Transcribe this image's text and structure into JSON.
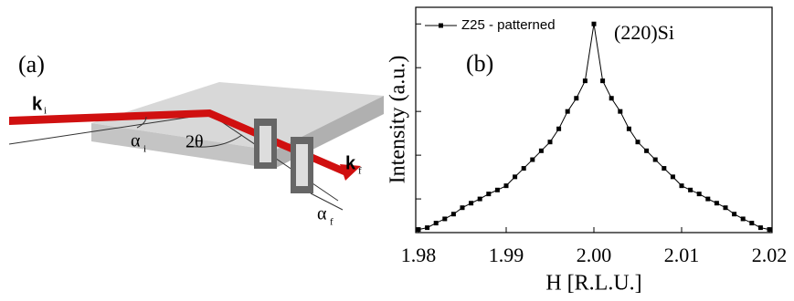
{
  "panel_a": {
    "label": "(a)",
    "k_in": "k",
    "k_in_sub": "i",
    "alpha_in": "α",
    "alpha_in_sub": "i",
    "two_theta": "2θ",
    "k_out": "k",
    "k_out_sub": "f",
    "alpha_out": "α",
    "alpha_out_sub": "f"
  },
  "chart_data": {
    "type": "line",
    "panel_label": "(b)",
    "annotation": "(220)Si",
    "x_label": "H [R.L.U.]",
    "y_label": "Intensity (a.u.)",
    "x": [
      1.98,
      1.981,
      1.982,
      1.983,
      1.984,
      1.985,
      1.986,
      1.987,
      1.988,
      1.989,
      1.99,
      1.991,
      1.992,
      1.993,
      1.994,
      1.995,
      1.996,
      1.997,
      1.998,
      1.999,
      2.0,
      2.001,
      2.002,
      2.003,
      2.004,
      2.005,
      2.006,
      2.007,
      2.008,
      2.009,
      2.01,
      2.011,
      2.012,
      2.013,
      2.014,
      2.015,
      2.016,
      2.017,
      2.018,
      2.019,
      2.02
    ],
    "series": [
      {
        "name": "Z25 - patterned",
        "color": "#000000",
        "values": [
          2.0,
          2.2,
          2.8,
          3.5,
          4.5,
          6.3,
          8,
          10,
          13,
          16,
          20,
          32,
          50,
          79,
          126,
          200,
          400,
          1000,
          2000,
          5000,
          100000,
          5000,
          2000,
          1000,
          400,
          200,
          126,
          79,
          50,
          32,
          20,
          16,
          13,
          10,
          8,
          6.3,
          4.5,
          3.5,
          2.8,
          2.2,
          2.0
        ]
      }
    ],
    "xlim": [
      1.98,
      2.02
    ],
    "xticks": [
      1.98,
      1.99,
      {
        "value": 2,
        "label": "2.00"
      },
      2.01,
      2.02
    ],
    "ylim": [
      1.7,
      240000
    ],
    "yticks": [
      10,
      100,
      1000,
      10000,
      100000
    ],
    "log_y": true
  }
}
